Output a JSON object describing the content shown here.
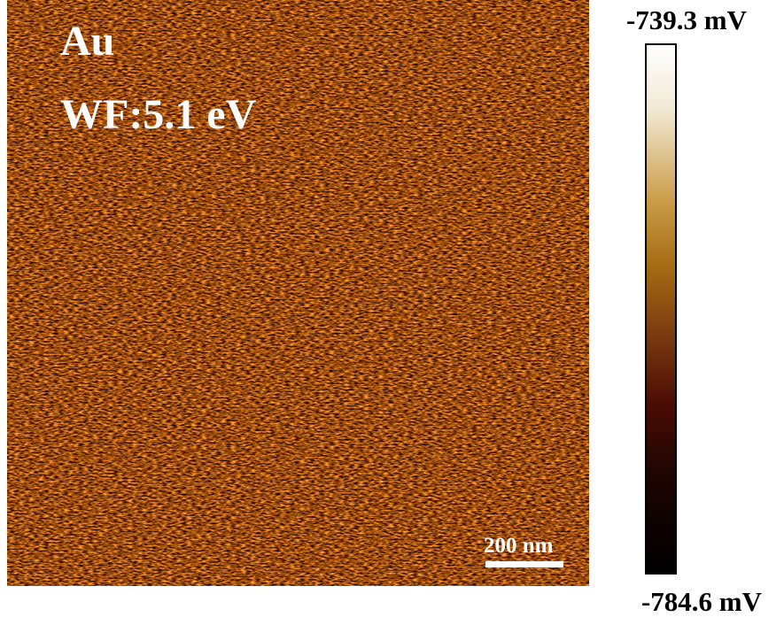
{
  "image": {
    "labels": [
      "Au",
      "WF:5.1 eV"
    ],
    "scale_bar": "200 nm"
  },
  "colorbar": {
    "max_label": "-739.3 mV",
    "min_label": "-784.6 mV"
  }
}
